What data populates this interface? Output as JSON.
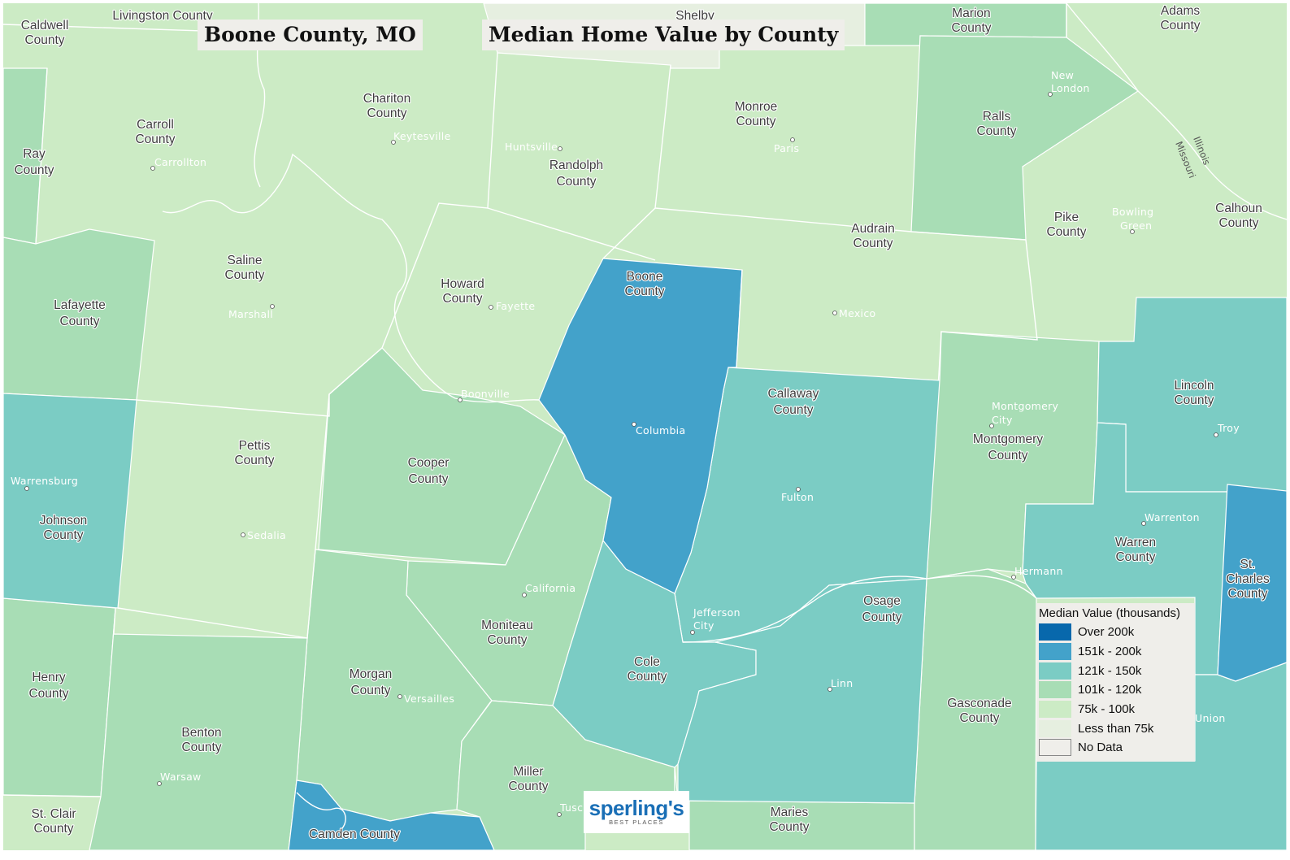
{
  "titles": {
    "left": "Boone County, MO",
    "right": "Median Home Value by County"
  },
  "colors": {
    "over_200k": "#0868ac",
    "k151_200": "#43a2ca",
    "k121_150": "#7bccc4",
    "k101_120": "#a8ddb5",
    "k75_100": "#ccebc5",
    "less_75": "#e6efe0",
    "no_data": "#efeeea"
  },
  "legend": {
    "title": "Median Value (thousands)",
    "items": [
      {
        "label": "Over 200k",
        "color": "#0868ac"
      },
      {
        "label": "151k - 200k",
        "color": "#43a2ca"
      },
      {
        "label": "121k - 150k",
        "color": "#7bccc4"
      },
      {
        "label": "101k - 120k",
        "color": "#a8ddb5"
      },
      {
        "label": "75k - 100k",
        "color": "#ccebc5"
      },
      {
        "label": "Less than 75k",
        "color": "#e6efe0"
      },
      {
        "label": "No Data",
        "color": "#efeeea"
      }
    ]
  },
  "counties": {
    "boone": [
      "Boone",
      "County"
    ],
    "howard": [
      "Howard",
      "County"
    ],
    "randolph": [
      "Randolph",
      "County"
    ],
    "audrain": [
      "Audrain",
      "County"
    ],
    "callaway": [
      "Callaway",
      "County"
    ],
    "cooper": [
      "Cooper",
      "County"
    ],
    "moniteau": [
      "Moniteau",
      "County"
    ],
    "cole": [
      "Cole",
      "County"
    ],
    "osage": [
      "Osage",
      "County"
    ],
    "saline": [
      "Saline",
      "County"
    ],
    "pettis": [
      "Pettis",
      "County"
    ],
    "chariton": [
      "Chariton",
      "County"
    ],
    "carroll": [
      "Carroll",
      "County"
    ],
    "monroe": [
      "Monroe",
      "County"
    ],
    "ralls": [
      "Ralls",
      "County"
    ],
    "pike": [
      "Pike",
      "County"
    ],
    "lafayette": [
      "Lafayette",
      "County"
    ],
    "johnson": [
      "Johnson",
      "County"
    ],
    "henry": [
      "Henry",
      "County"
    ],
    "benton": [
      "Benton",
      "County"
    ],
    "morgan": [
      "Morgan",
      "County"
    ],
    "miller": [
      "Miller",
      "County"
    ],
    "maries": [
      "Maries",
      "County"
    ],
    "gasconade": [
      "Gasconade",
      "County"
    ],
    "montgomery": [
      "Montgomery",
      "County"
    ],
    "warren": [
      "Warren",
      "County"
    ],
    "lincoln": [
      "Lincoln",
      "County"
    ],
    "st_charles": [
      "St.",
      "Charles",
      "County"
    ],
    "ray": [
      "Ray",
      "County"
    ],
    "caldwell": [
      "Caldwell",
      "County"
    ],
    "marion": [
      "Marion",
      "County"
    ],
    "adams": [
      "Adams",
      "County"
    ],
    "calhoun": [
      "Calhoun",
      "County"
    ],
    "st_clair": [
      "St. Clair",
      "County"
    ],
    "livingston": "Livingston County",
    "shelby": "Shelby",
    "camden": "Camden County"
  },
  "towns": {
    "columbia": "Columbia",
    "fayette": "Fayette",
    "boonville": "Boonville",
    "huntsville": "Huntsville",
    "keytesville": "Keytesville",
    "carrollton": "Carrollton",
    "marshall": "Marshall",
    "paris": "Paris",
    "mexico": "Mexico",
    "new_london": [
      "New",
      "London"
    ],
    "bowling_green": [
      "Bowling",
      "Green"
    ],
    "montgomery_city": [
      "Montgomery",
      "City"
    ],
    "troy": "Troy",
    "warrenton": "Warrenton",
    "hermann": "Hermann",
    "fulton": "Fulton",
    "jefferson_city": [
      "Jefferson",
      "City"
    ],
    "linn": "Linn",
    "california": "California",
    "versailles": "Versailles",
    "sedalia": "Sedalia",
    "warrensburg": "Warrensburg",
    "warsaw": "Warsaw",
    "tuscumbia": "Tusc",
    "union": "Union"
  },
  "rivers": {
    "missouri": "Missouri",
    "illinois": "Illinois"
  },
  "logo": {
    "brand": "sperling's",
    "tagline": "BEST PLACES"
  }
}
